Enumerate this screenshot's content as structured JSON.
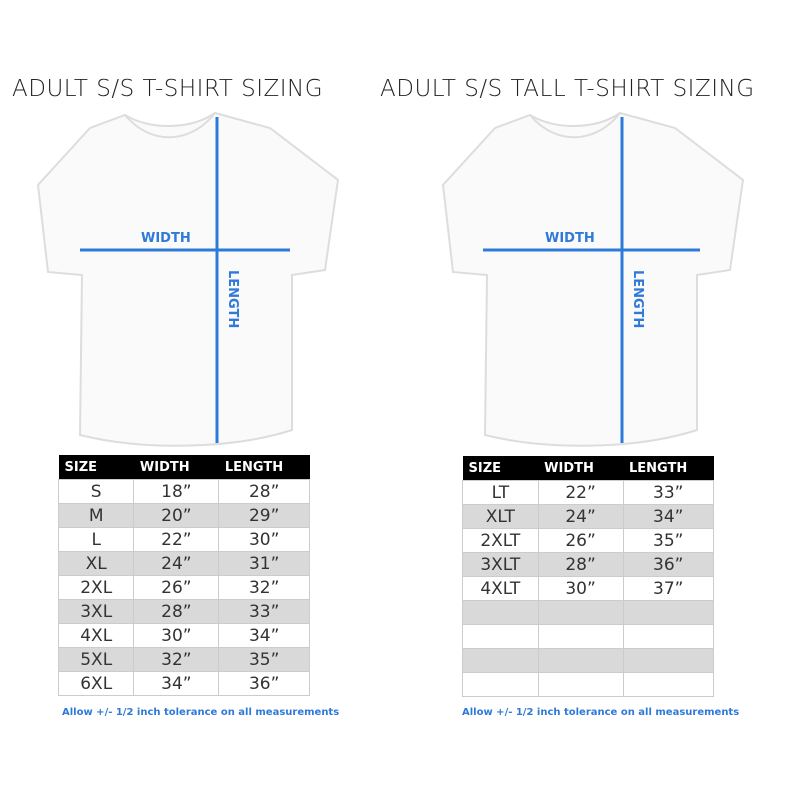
{
  "left": {
    "title": "ADULT S/S T-SHIRT SIZING",
    "width_label": "WIDTH",
    "length_label": "LENGTH",
    "headers": [
      "SIZE",
      "WIDTH",
      "LENGTH"
    ],
    "rows": [
      [
        "S",
        "18”",
        "28”"
      ],
      [
        "M",
        "20”",
        "29”"
      ],
      [
        "L",
        "22”",
        "30”"
      ],
      [
        "XL",
        "24”",
        "31”"
      ],
      [
        "2XL",
        "26”",
        "32”"
      ],
      [
        "3XL",
        "28”",
        "33”"
      ],
      [
        "4XL",
        "30”",
        "34”"
      ],
      [
        "5XL",
        "32”",
        "35”"
      ],
      [
        "6XL",
        "34”",
        "36”"
      ]
    ],
    "note": "Allow +/- 1/2 inch tolerance on all measurements"
  },
  "right": {
    "title": "ADULT S/S TALL T-SHIRT SIZING",
    "width_label": "WIDTH",
    "length_label": "LENGTH",
    "headers": [
      "SIZE",
      "WIDTH",
      "LENGTH"
    ],
    "rows": [
      [
        "LT",
        "22”",
        "33”"
      ],
      [
        "XLT",
        "24”",
        "34”"
      ],
      [
        "2XLT",
        "26”",
        "35”"
      ],
      [
        "3XLT",
        "28”",
        "36”"
      ],
      [
        "4XLT",
        "30”",
        "37”"
      ],
      [
        "",
        "",
        ""
      ],
      [
        "",
        "",
        ""
      ],
      [
        "",
        "",
        ""
      ],
      [
        "",
        "",
        ""
      ]
    ],
    "note": "Allow +/- 1/2 inch tolerance on all measurements"
  },
  "colors": {
    "measure_line": "#2f7ad8",
    "header_bg": "#000000",
    "stripe": "#d9d9d9"
  }
}
